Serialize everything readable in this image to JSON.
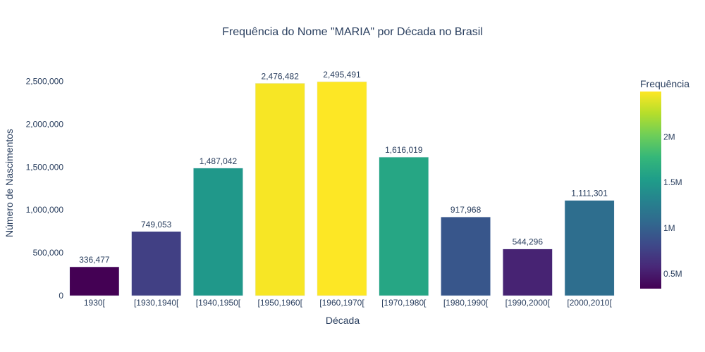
{
  "chart_data": {
    "type": "bar",
    "title": "Frequência do Nome \"MARIA\" por Década no Brasil",
    "xlabel": "Década",
    "ylabel": "Número de Nascimentos",
    "categories": [
      "1930[",
      "[1930,1940[",
      "[1940,1950[",
      "[1950,1960[",
      "[1960,1970[",
      "[1970,1980[",
      "[1980,1990[",
      "[1990,2000[",
      "[2000,2010["
    ],
    "values": [
      336477,
      749053,
      1487042,
      2476482,
      2495491,
      1616019,
      917968,
      544296,
      1111301
    ],
    "value_labels": [
      "336,477",
      "749,053",
      "1,487,042",
      "2,476,482",
      "2,495,491",
      "1,616,019",
      "917,968",
      "544,296",
      "1,111,301"
    ],
    "ylim": [
      0,
      2626833
    ],
    "y_ticks": [
      0,
      500000,
      1000000,
      1500000,
      2000000,
      2500000
    ],
    "y_tick_labels": [
      "0",
      "500,000",
      "1,000,000",
      "1,500,000",
      "2,000,000",
      "2,500,000"
    ],
    "grid": false,
    "colorscale": "Viridis",
    "colorbar": {
      "title": "Frequência",
      "range": [
        336477,
        2495491
      ],
      "ticks": [
        500000,
        1000000,
        1500000,
        2000000
      ],
      "tick_labels": [
        "0.5M",
        "1M",
        "1.5M",
        "2M"
      ]
    },
    "colors": {
      "text": "#2a3f5f",
      "bar_outline": "#e5ecf6",
      "background": "#ffffff"
    }
  }
}
